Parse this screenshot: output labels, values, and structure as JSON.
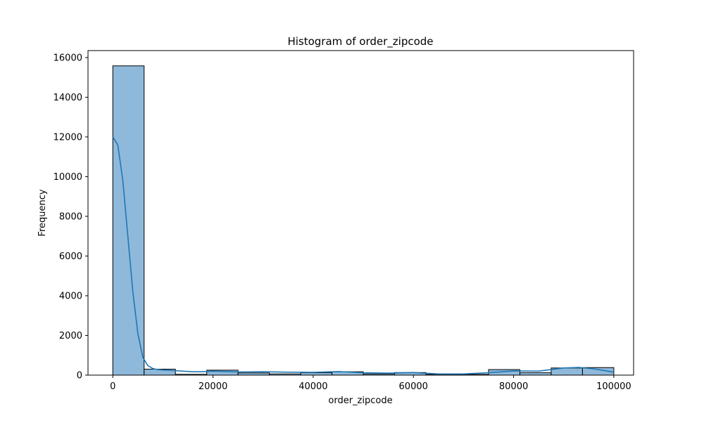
{
  "chart_data": {
    "type": "bar",
    "title": "Histogram of order_zipcode",
    "xlabel": "order_zipcode",
    "ylabel": "Frequency",
    "xlim": [
      -4950,
      103950
    ],
    "ylim": [
      0,
      16350
    ],
    "xticks": [
      0,
      20000,
      40000,
      60000,
      80000,
      100000
    ],
    "xtick_labels": [
      "0",
      "20000",
      "40000",
      "60000",
      "80000",
      "100000"
    ],
    "yticks": [
      0,
      2000,
      4000,
      6000,
      8000,
      10000,
      12000,
      14000,
      16000
    ],
    "ytick_labels": [
      "0",
      "2000",
      "4000",
      "6000",
      "8000",
      "10000",
      "12000",
      "14000",
      "16000"
    ],
    "bins": [
      {
        "x0": 0,
        "x1": 6250,
        "value": 15580
      },
      {
        "x0": 6250,
        "x1": 12500,
        "value": 300
      },
      {
        "x0": 12500,
        "x1": 18750,
        "value": 40
      },
      {
        "x0": 18750,
        "x1": 25000,
        "value": 250
      },
      {
        "x0": 25000,
        "x1": 31250,
        "value": 110
      },
      {
        "x0": 31250,
        "x1": 37500,
        "value": 60
      },
      {
        "x0": 37500,
        "x1": 43750,
        "value": 120
      },
      {
        "x0": 43750,
        "x1": 50000,
        "value": 170
      },
      {
        "x0": 50000,
        "x1": 56250,
        "value": 60
      },
      {
        "x0": 56250,
        "x1": 62500,
        "value": 130
      },
      {
        "x0": 62500,
        "x1": 68750,
        "value": 40
      },
      {
        "x0": 68750,
        "x1": 75000,
        "value": 40
      },
      {
        "x0": 75000,
        "x1": 81250,
        "value": 280
      },
      {
        "x0": 81250,
        "x1": 87500,
        "value": 120
      },
      {
        "x0": 87500,
        "x1": 93750,
        "value": 360
      },
      {
        "x0": 93750,
        "x1": 100000,
        "value": 380
      }
    ],
    "kde": {
      "x": [
        0,
        1000,
        2000,
        3000,
        4000,
        5000,
        6000,
        7000,
        8000,
        9000,
        10000,
        12000,
        14000,
        16000,
        18000,
        20000,
        25000,
        30000,
        35000,
        40000,
        45000,
        50000,
        55000,
        60000,
        65000,
        70000,
        75000,
        80000,
        85000,
        90000,
        93000,
        96000,
        100000
      ],
      "y": [
        12000,
        11600,
        9800,
        7000,
        4200,
        2100,
        900,
        480,
        330,
        280,
        260,
        230,
        200,
        170,
        170,
        200,
        160,
        170,
        150,
        140,
        180,
        120,
        100,
        130,
        60,
        60,
        120,
        210,
        200,
        360,
        390,
        320,
        150
      ]
    },
    "colors": {
      "bar_fill": "#8fb9da",
      "bar_edge": "#000000",
      "kde_line": "#1f77b4"
    },
    "grid": false,
    "legend": "none"
  }
}
